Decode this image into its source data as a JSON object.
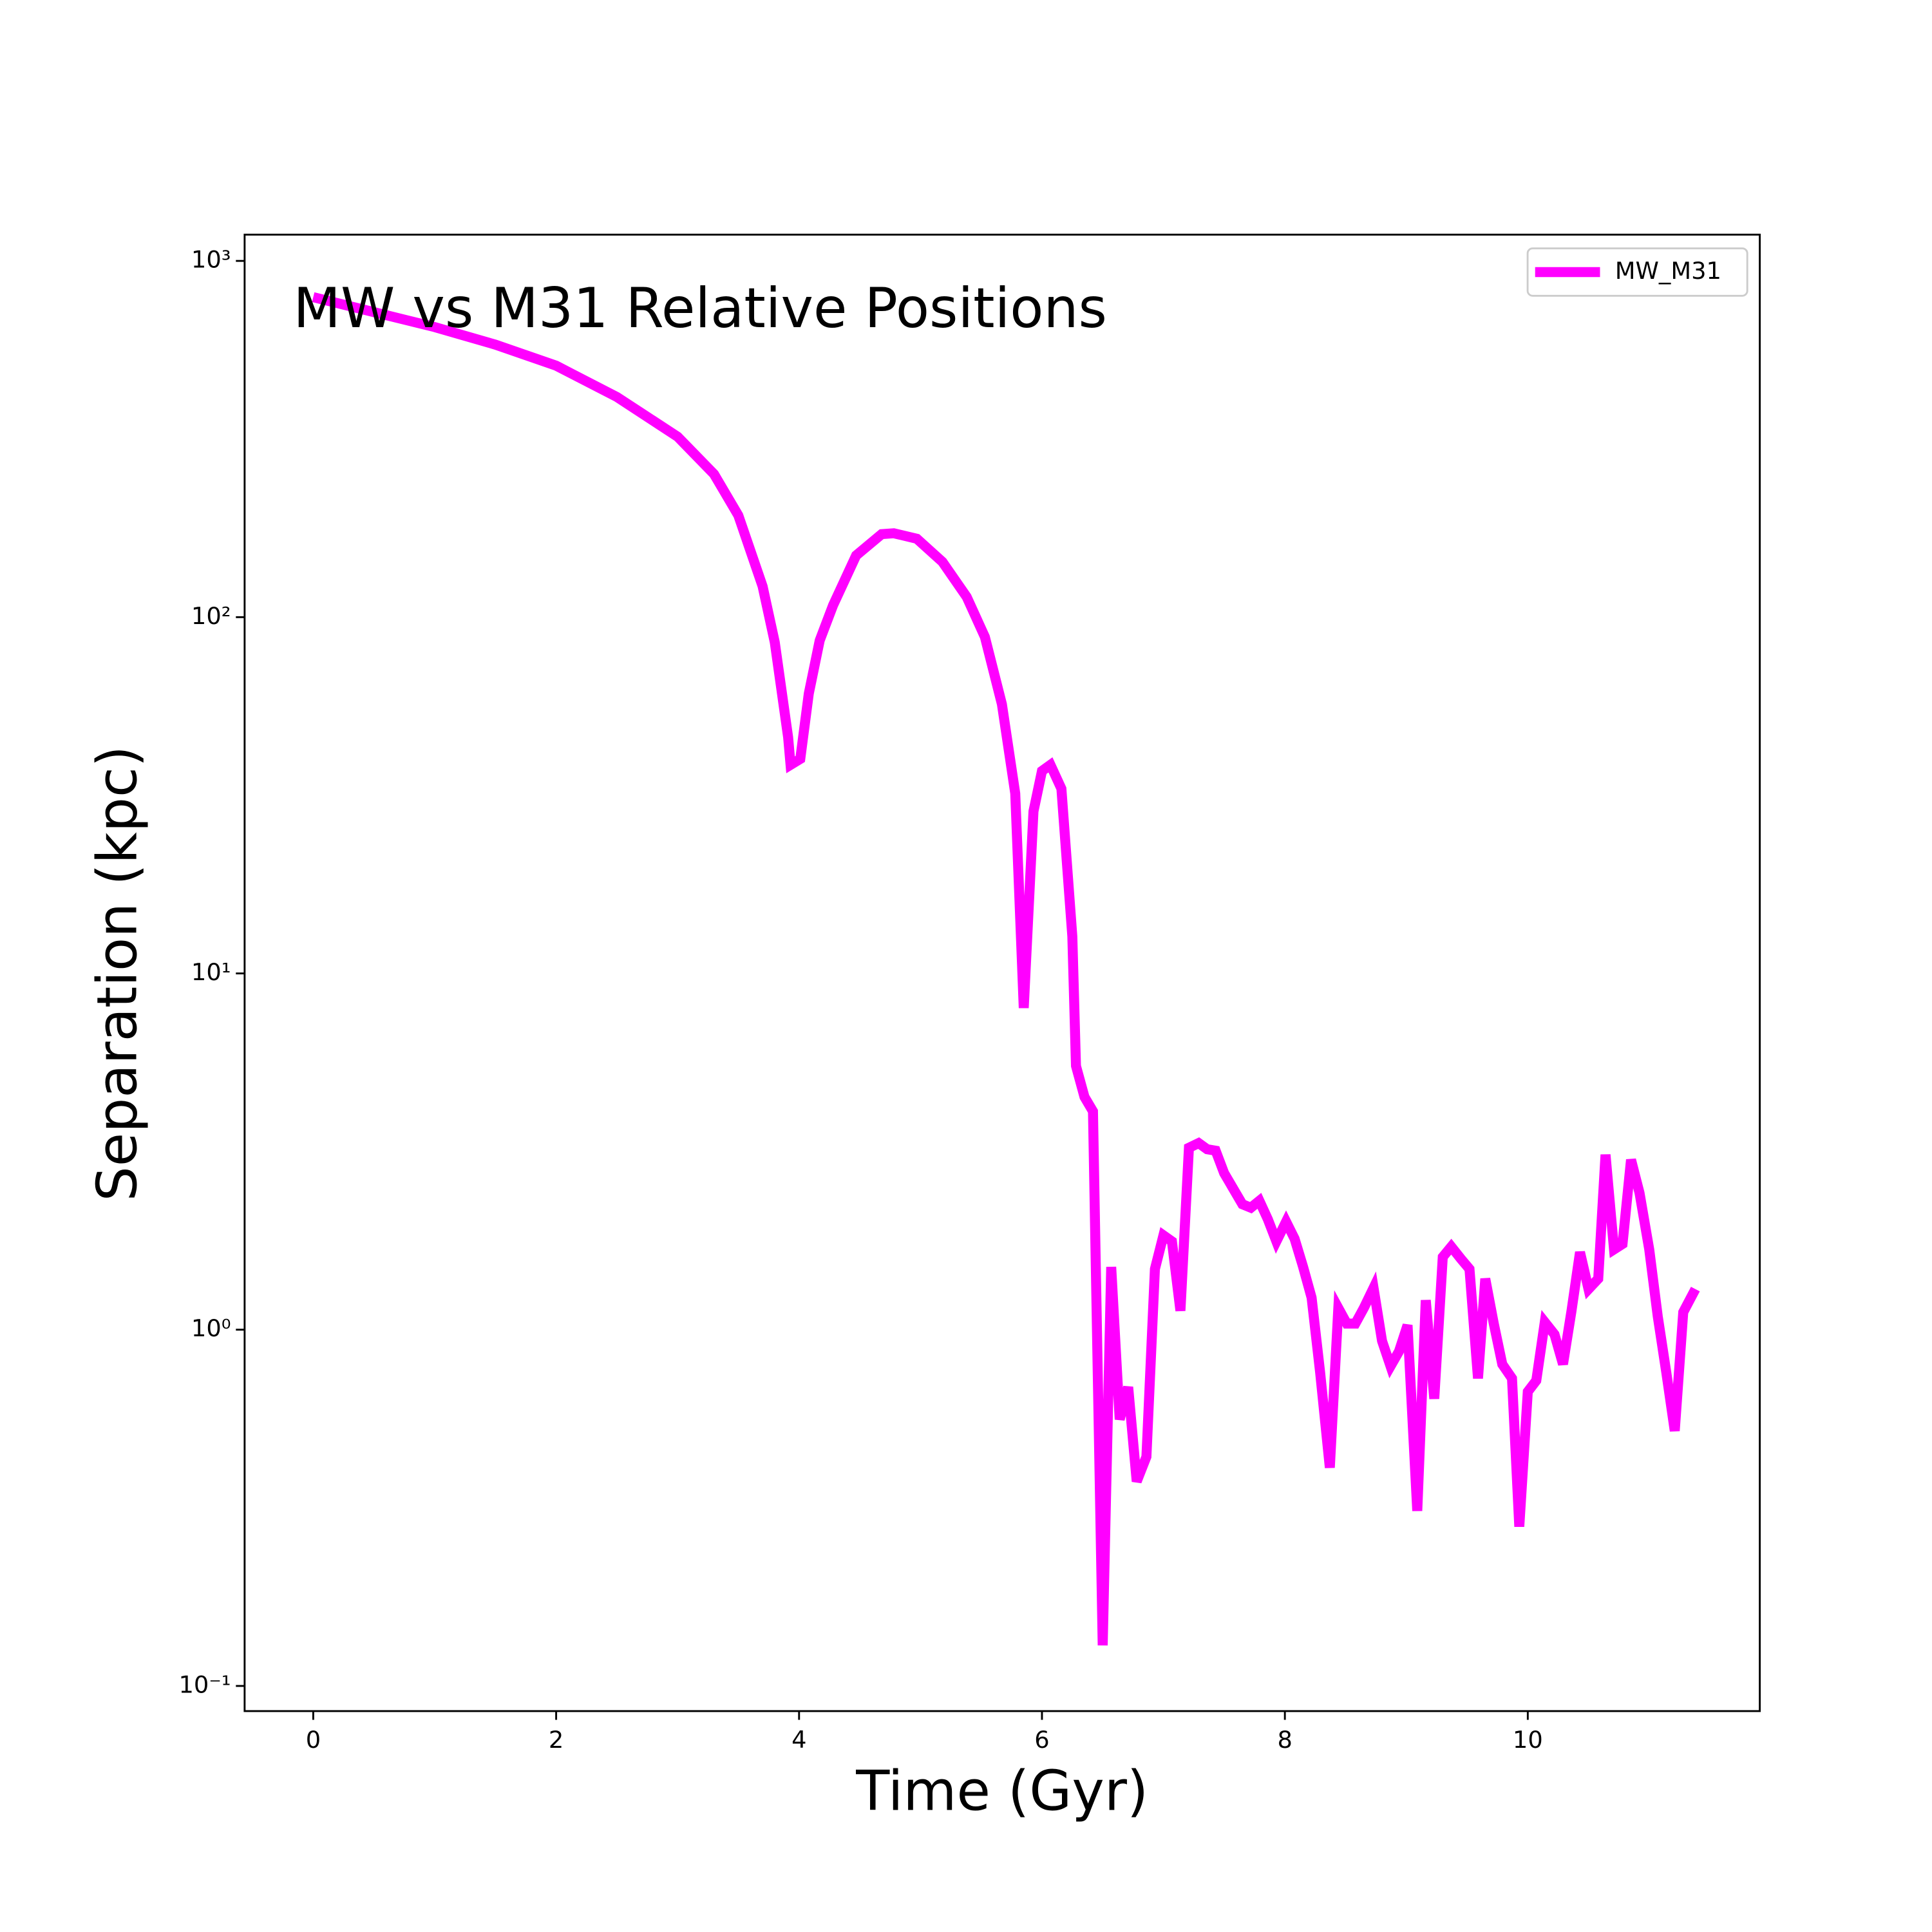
{
  "chart_data": {
    "type": "line",
    "title": "MW vs M31 Relative Positions",
    "xlabel": "Time (Gyr)",
    "ylabel": "Separation (kpc)",
    "yscale": "log",
    "legend": "upper right",
    "grid": false,
    "xlim": [
      -0.565,
      11.91
    ],
    "ylim": [
      0.085,
      1185
    ],
    "xticks": [
      0,
      2,
      4,
      6,
      8,
      10
    ],
    "yticks": [
      {
        "value": 0.1,
        "label": "10⁻¹"
      },
      {
        "value": 1,
        "label": "10⁰"
      },
      {
        "value": 10,
        "label": "10¹"
      },
      {
        "value": 100,
        "label": "10²"
      },
      {
        "value": 1000,
        "label": "10³"
      }
    ],
    "x": [
      0,
      0.5,
      1.0,
      1.5,
      2.0,
      2.5,
      3.0,
      3.3,
      3.5,
      3.7,
      3.8,
      3.91,
      3.93,
      4.01,
      4.08,
      4.17,
      4.28,
      4.47,
      4.68,
      4.78,
      4.97,
      5.18,
      5.38,
      5.53,
      5.67,
      5.78,
      5.85,
      5.93,
      6.0,
      6.07,
      6.16,
      6.25,
      6.28,
      6.35,
      6.42,
      6.5,
      6.57,
      6.64,
      6.71,
      6.78,
      6.86,
      6.93,
      7.0,
      7.07,
      7.14,
      7.21,
      7.29,
      7.36,
      7.43,
      7.5,
      7.65,
      7.72,
      7.79,
      7.86,
      7.93,
      8.01,
      8.08,
      8.15,
      8.22,
      8.29,
      8.37,
      8.44,
      8.51,
      8.58,
      8.65,
      8.73,
      8.8,
      8.87,
      8.94,
      9.01,
      9.09,
      9.16,
      9.23,
      9.3,
      9.37,
      9.45,
      9.52,
      9.59,
      9.65,
      9.72,
      9.79,
      9.87,
      9.93,
      10.0,
      10.07,
      10.14,
      10.22,
      10.29,
      10.36,
      10.43,
      10.5,
      10.58,
      10.64,
      10.71,
      10.78,
      10.85,
      10.92,
      11.0,
      11.07,
      11.14,
      11.21,
      11.28,
      11.38
    ],
    "series": [
      {
        "name": "MW_M31",
        "color": "#ff00ff",
        "values": [
          791,
          718,
          652,
          582,
          508,
          415,
          321,
          252,
          193,
          122,
          85,
          46,
          38.5,
          40,
          61,
          86,
          108,
          149,
          171,
          172,
          166,
          143,
          114,
          88,
          57,
          32,
          8.0,
          28.5,
          37,
          38.5,
          33,
          12.7,
          5.5,
          4.5,
          4.1,
          0.13,
          1.5,
          0.56,
          0.69,
          0.375,
          0.44,
          1.48,
          1.84,
          1.77,
          1.13,
          3.24,
          3.34,
          3.21,
          3.18,
          2.75,
          2.25,
          2.2,
          2.3,
          2.04,
          1.77,
          2.01,
          1.8,
          1.5,
          1.23,
          0.76,
          0.41,
          1.15,
          1.04,
          1.04,
          1.15,
          1.31,
          0.93,
          0.79,
          0.87,
          1.03,
          0.31,
          1.21,
          0.64,
          1.6,
          1.71,
          1.58,
          1.48,
          0.73,
          1.39,
          1.04,
          0.8,
          0.73,
          0.28,
          0.67,
          0.72,
          1.05,
          0.97,
          0.8,
          1.13,
          1.65,
          1.3,
          1.39,
          3.1,
          1.68,
          1.74,
          3.0,
          2.42,
          1.68,
          1.09,
          0.76,
          0.52,
          1.12,
          1.3
        ]
      }
    ]
  }
}
